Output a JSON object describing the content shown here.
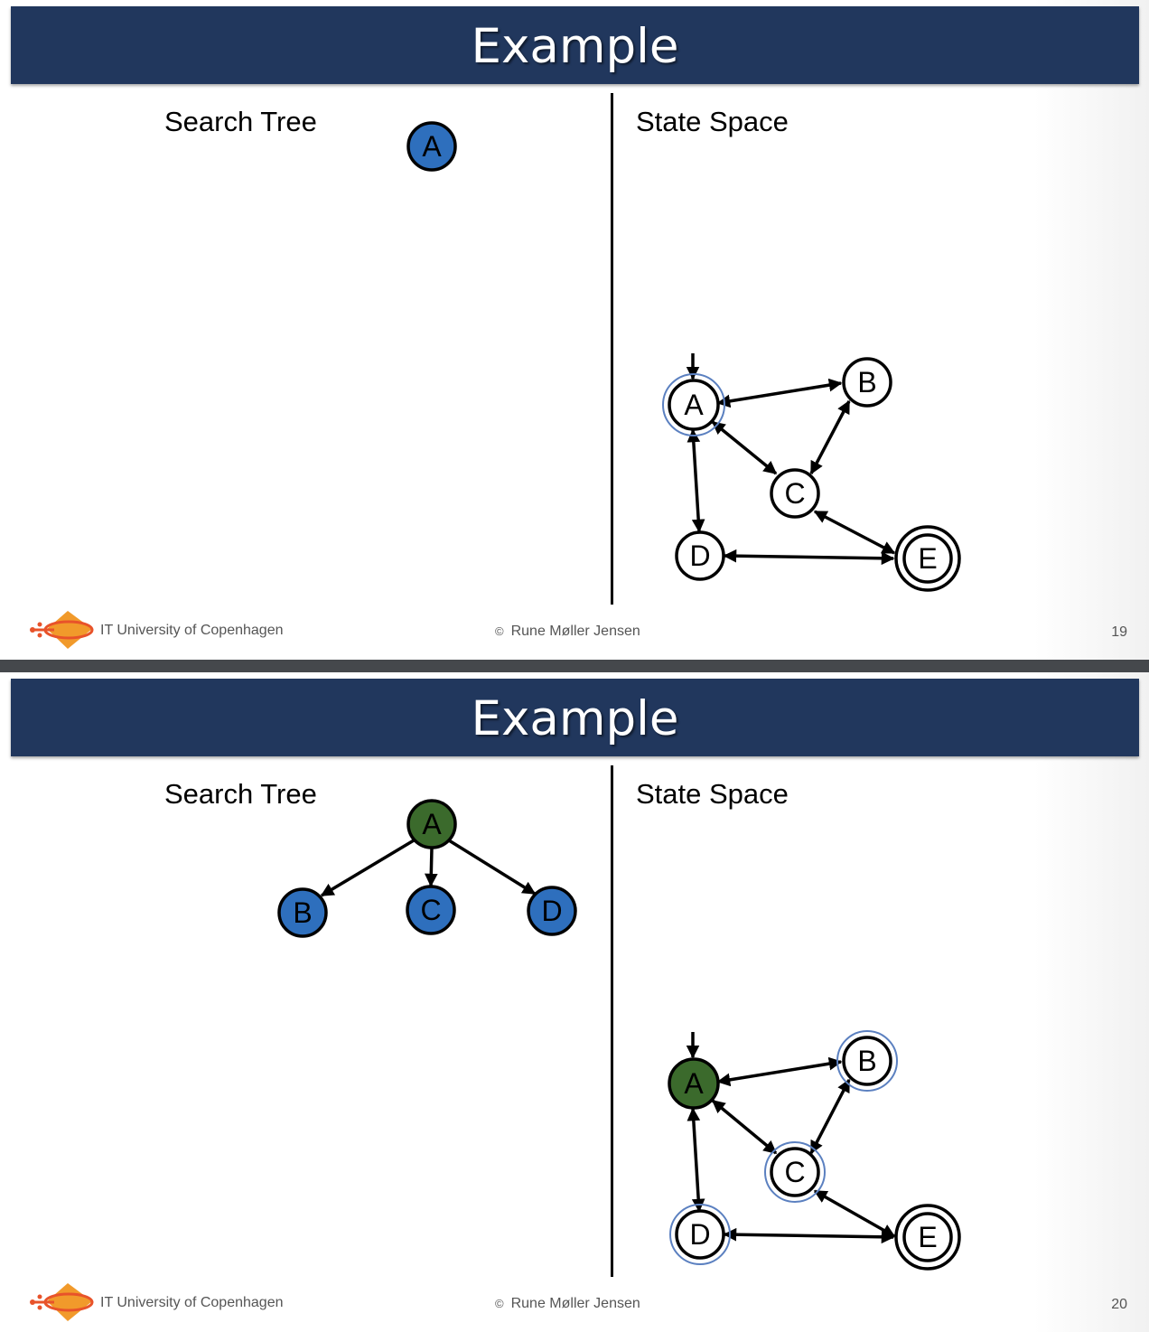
{
  "colors": {
    "title_bar": "#21375d",
    "frontier_node": "#2e6fbd",
    "expanded_node": "#3b6a2c",
    "frontier_ring": "#5b80c0",
    "separator_bar": "#45484c"
  },
  "slides": [
    {
      "title": "Example",
      "search_tree_heading": "Search Tree",
      "state_space_heading": "State Space",
      "footer": {
        "university": "IT University of Copenhagen",
        "copyright_symbol": "©",
        "author": "Rune Møller Jensen",
        "page": "19"
      },
      "search_tree": {
        "nodes": [
          {
            "label": "A",
            "status": "frontier"
          }
        ],
        "edges": []
      },
      "state_space": {
        "start": "A",
        "goal": "E",
        "nodes": [
          {
            "label": "A",
            "status": "frontier"
          },
          {
            "label": "B",
            "status": "unvisited"
          },
          {
            "label": "C",
            "status": "unvisited"
          },
          {
            "label": "D",
            "status": "unvisited"
          },
          {
            "label": "E",
            "status": "unvisited"
          }
        ],
        "edges": [
          [
            "A",
            "B"
          ],
          [
            "A",
            "C"
          ],
          [
            "A",
            "D"
          ],
          [
            "B",
            "C"
          ],
          [
            "C",
            "E"
          ],
          [
            "D",
            "E"
          ]
        ]
      }
    },
    {
      "title": "Example",
      "search_tree_heading": "Search Tree",
      "state_space_heading": "State Space",
      "footer": {
        "university": "IT University of Copenhagen",
        "copyright_symbol": "©",
        "author": "Rune Møller Jensen",
        "page": "20"
      },
      "search_tree": {
        "nodes": [
          {
            "label": "A",
            "status": "expanded"
          },
          {
            "label": "B",
            "status": "frontier"
          },
          {
            "label": "C",
            "status": "frontier"
          },
          {
            "label": "D",
            "status": "frontier"
          }
        ],
        "edges": [
          [
            "A",
            "B"
          ],
          [
            "A",
            "C"
          ],
          [
            "A",
            "D"
          ]
        ]
      },
      "state_space": {
        "start": "A",
        "goal": "E",
        "nodes": [
          {
            "label": "A",
            "status": "expanded"
          },
          {
            "label": "B",
            "status": "frontier"
          },
          {
            "label": "C",
            "status": "frontier"
          },
          {
            "label": "D",
            "status": "frontier"
          },
          {
            "label": "E",
            "status": "unvisited"
          }
        ],
        "edges": [
          [
            "A",
            "B"
          ],
          [
            "A",
            "C"
          ],
          [
            "A",
            "D"
          ],
          [
            "B",
            "C"
          ],
          [
            "C",
            "E"
          ],
          [
            "D",
            "E"
          ]
        ]
      }
    }
  ]
}
